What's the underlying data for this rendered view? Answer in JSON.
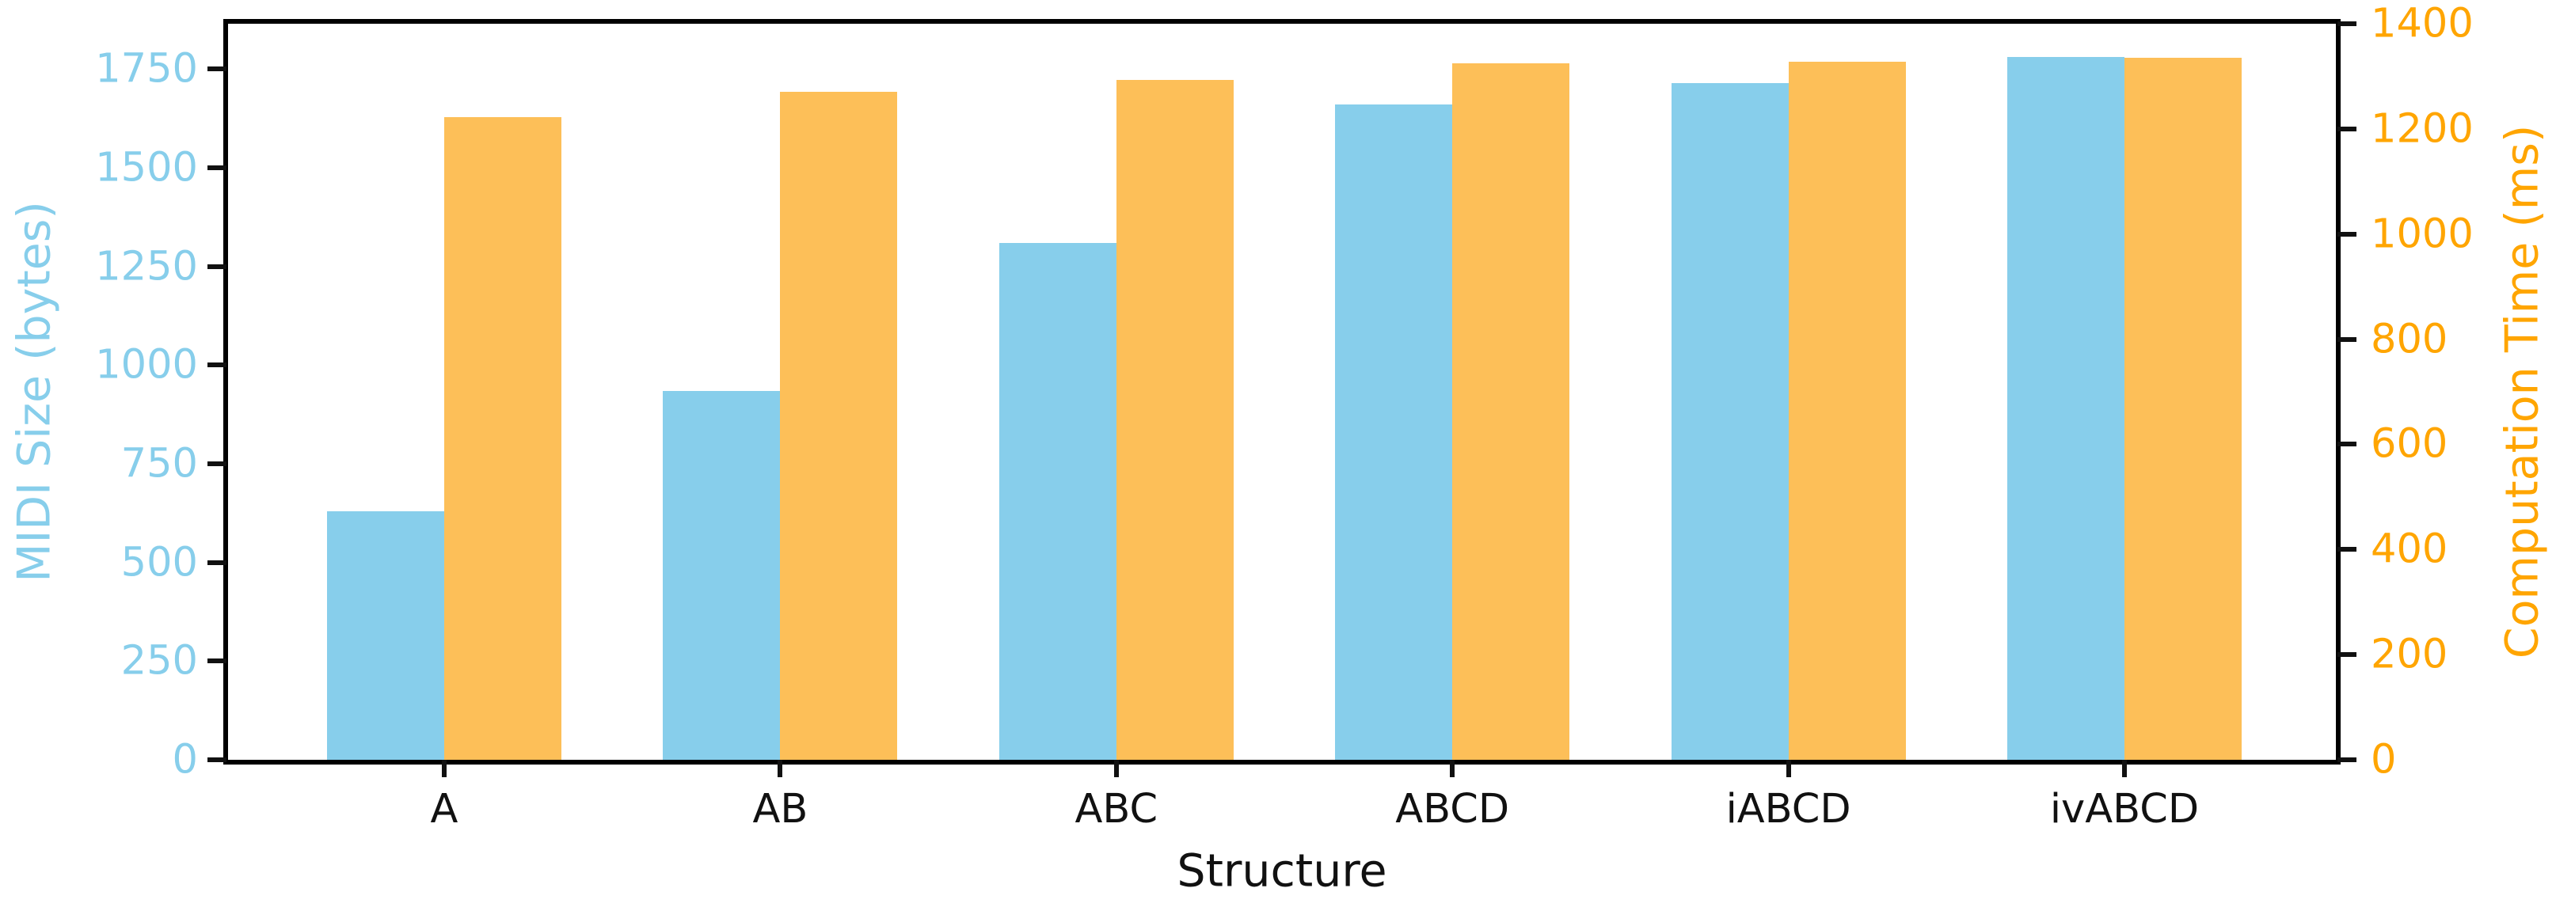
{
  "chart_data": {
    "type": "bar",
    "title": "",
    "xlabel": "Structure",
    "ylabel_left": "MIDI Size (bytes)",
    "ylabel_right": "Computation Time (ms)",
    "categories": [
      "A",
      "AB",
      "ABC",
      "ABCD",
      "iABCD",
      "ivABCD"
    ],
    "series": [
      {
        "name": "MIDI Size (bytes)",
        "axis": "left",
        "color": "#87CEEB",
        "values": [
          630,
          935,
          1310,
          1660,
          1715,
          1780
        ]
      },
      {
        "name": "Computation Time (ms)",
        "axis": "right",
        "color": "#FDBF58",
        "values": [
          1223,
          1270,
          1293,
          1325,
          1328,
          1335
        ]
      }
    ],
    "left_axis": {
      "min": 0,
      "max": 1865,
      "ticks": [
        0,
        250,
        500,
        750,
        1000,
        1250,
        1500,
        1750
      ],
      "label_color": "#87CEEB"
    },
    "right_axis": {
      "min": 0,
      "max": 1400,
      "ticks": [
        0,
        200,
        400,
        600,
        800,
        1000,
        1200,
        1400
      ],
      "label_color": "#FFA500"
    },
    "grid": false,
    "legend": null,
    "background": "#ffffff",
    "spine_color": "#000000"
  }
}
